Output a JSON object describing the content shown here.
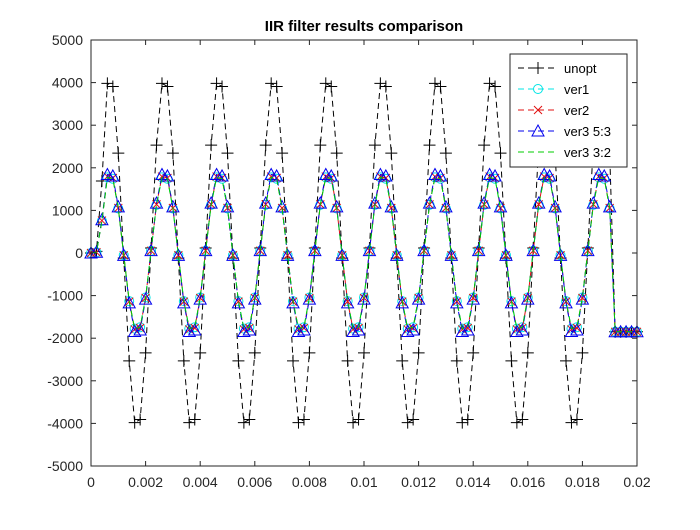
{
  "chart_data": {
    "type": "line",
    "title": "IIR filter results comparison",
    "xlabel": "",
    "ylabel": "",
    "xlim": [
      0,
      0.02
    ],
    "ylim": [
      -5000,
      5000
    ],
    "xticks": [
      0,
      0.002,
      0.004,
      0.006,
      0.008,
      0.01,
      0.012,
      0.014,
      0.016,
      0.018,
      0.02
    ],
    "xtick_labels": [
      "0",
      "0.002",
      "0.004",
      "0.006",
      "0.008",
      "0.01",
      "0.012",
      "0.014",
      "0.016",
      "0.018",
      "0.02"
    ],
    "yticks": [
      -5000,
      -4000,
      -3000,
      -2000,
      -1000,
      0,
      1000,
      2000,
      3000,
      4000,
      5000
    ],
    "ytick_labels": [
      "-5000",
      "-4000",
      "-3000",
      "-2000",
      "-1000",
      "0",
      "1000",
      "2000",
      "3000",
      "4000",
      "5000"
    ],
    "grid": false,
    "legend_position": "top-right",
    "signal": {
      "sample_period": 0.0002,
      "sample_count": 101,
      "frequency_hz": 500,
      "phase_rad": -0.6
    },
    "series": [
      {
        "name": "unopt",
        "color": "#000000",
        "marker": "plus",
        "line": "dashed",
        "amplitude": 4150,
        "end_value": -1850
      },
      {
        "name": "ver1",
        "color": "#00e5e5",
        "marker": "circle",
        "line": "dashed",
        "amplitude": 1850,
        "end_value": -1850
      },
      {
        "name": "ver2",
        "color": "#e01010",
        "marker": "x",
        "line": "dashed",
        "amplitude": 1870,
        "end_value": -1850
      },
      {
        "name": "ver3 5:3",
        "color": "#0000ee",
        "marker": "triangle",
        "line": "dashed",
        "amplitude": 1920,
        "end_value": -1850
      },
      {
        "name": "ver3 3:2",
        "color": "#00cc00",
        "marker": "none",
        "line": "dashed",
        "amplitude": 1850,
        "end_value": -1850
      }
    ]
  }
}
